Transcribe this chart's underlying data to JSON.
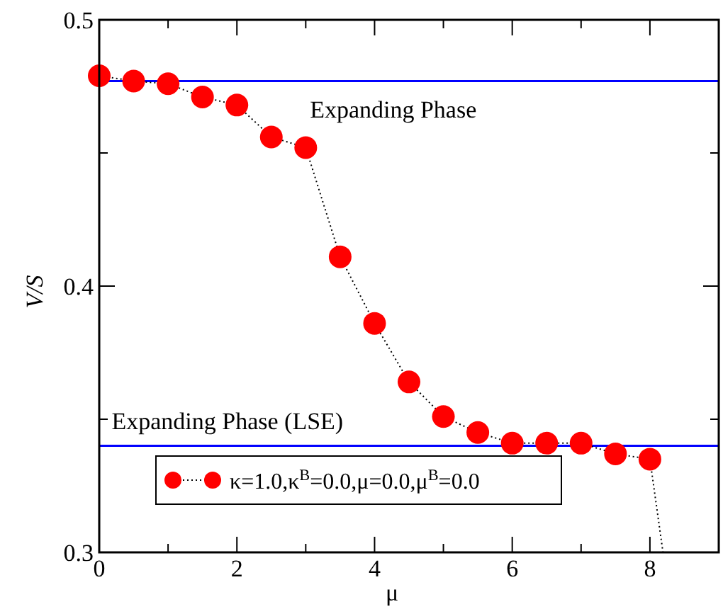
{
  "chart_data": {
    "type": "scatter",
    "xlabel": "μ",
    "ylabel": "V/S",
    "xlim": [
      0,
      9
    ],
    "ylim": [
      0.3,
      0.5
    ],
    "xticks": [
      0,
      {
        "value": 1,
        "label": null
      },
      2,
      {
        "value": 3,
        "label": null
      },
      4,
      {
        "value": 5,
        "label": null
      },
      6,
      {
        "value": 7,
        "label": null
      },
      8
    ],
    "yticks": [
      0.3,
      {
        "value": 0.35,
        "label": null
      },
      0.4,
      {
        "value": 0.45,
        "label": null
      },
      0.5
    ],
    "series": [
      {
        "color": "#000000",
        "type": "line",
        "marker": "none",
        "line_style": "dotted",
        "x": [
          0,
          0.5,
          1,
          1.5,
          2,
          2.5,
          3,
          3.5,
          4,
          4.5,
          5,
          5.5,
          6,
          6.5,
          7,
          7.5,
          8,
          8.19
        ],
        "values": [
          0.479,
          0.477,
          0.476,
          0.471,
          0.468,
          0.456,
          0.452,
          0.411,
          0.386,
          0.364,
          0.351,
          0.345,
          0.341,
          0.341,
          0.341,
          0.337,
          0.335,
          0.3
        ]
      },
      {
        "name": "κ=1.0,κ$^{B}$=0.0,μ=0.0,μ$^{B}$=0.0",
        "color": "#ff0000",
        "marker": "circle",
        "x": [
          0,
          0.5,
          1,
          1.5,
          2,
          2.5,
          3,
          3.5,
          4,
          4.5,
          5,
          5.5,
          6,
          6.5,
          7,
          7.5,
          8
        ],
        "values": [
          0.479,
          0.477,
          0.476,
          0.471,
          0.468,
          0.456,
          0.452,
          0.411,
          0.386,
          0.364,
          0.351,
          0.345,
          0.341,
          0.341,
          0.341,
          0.337,
          0.335
        ]
      }
    ],
    "ref_lines": [
      {
        "axis": "y",
        "value": 0.477,
        "label": "Expanding Phase",
        "color": "#0000ff"
      },
      {
        "axis": "y",
        "value": 0.34,
        "label": "Expanding Phase (LSE)",
        "color": "#0000ff"
      }
    ],
    "legend": "bottom left"
  }
}
